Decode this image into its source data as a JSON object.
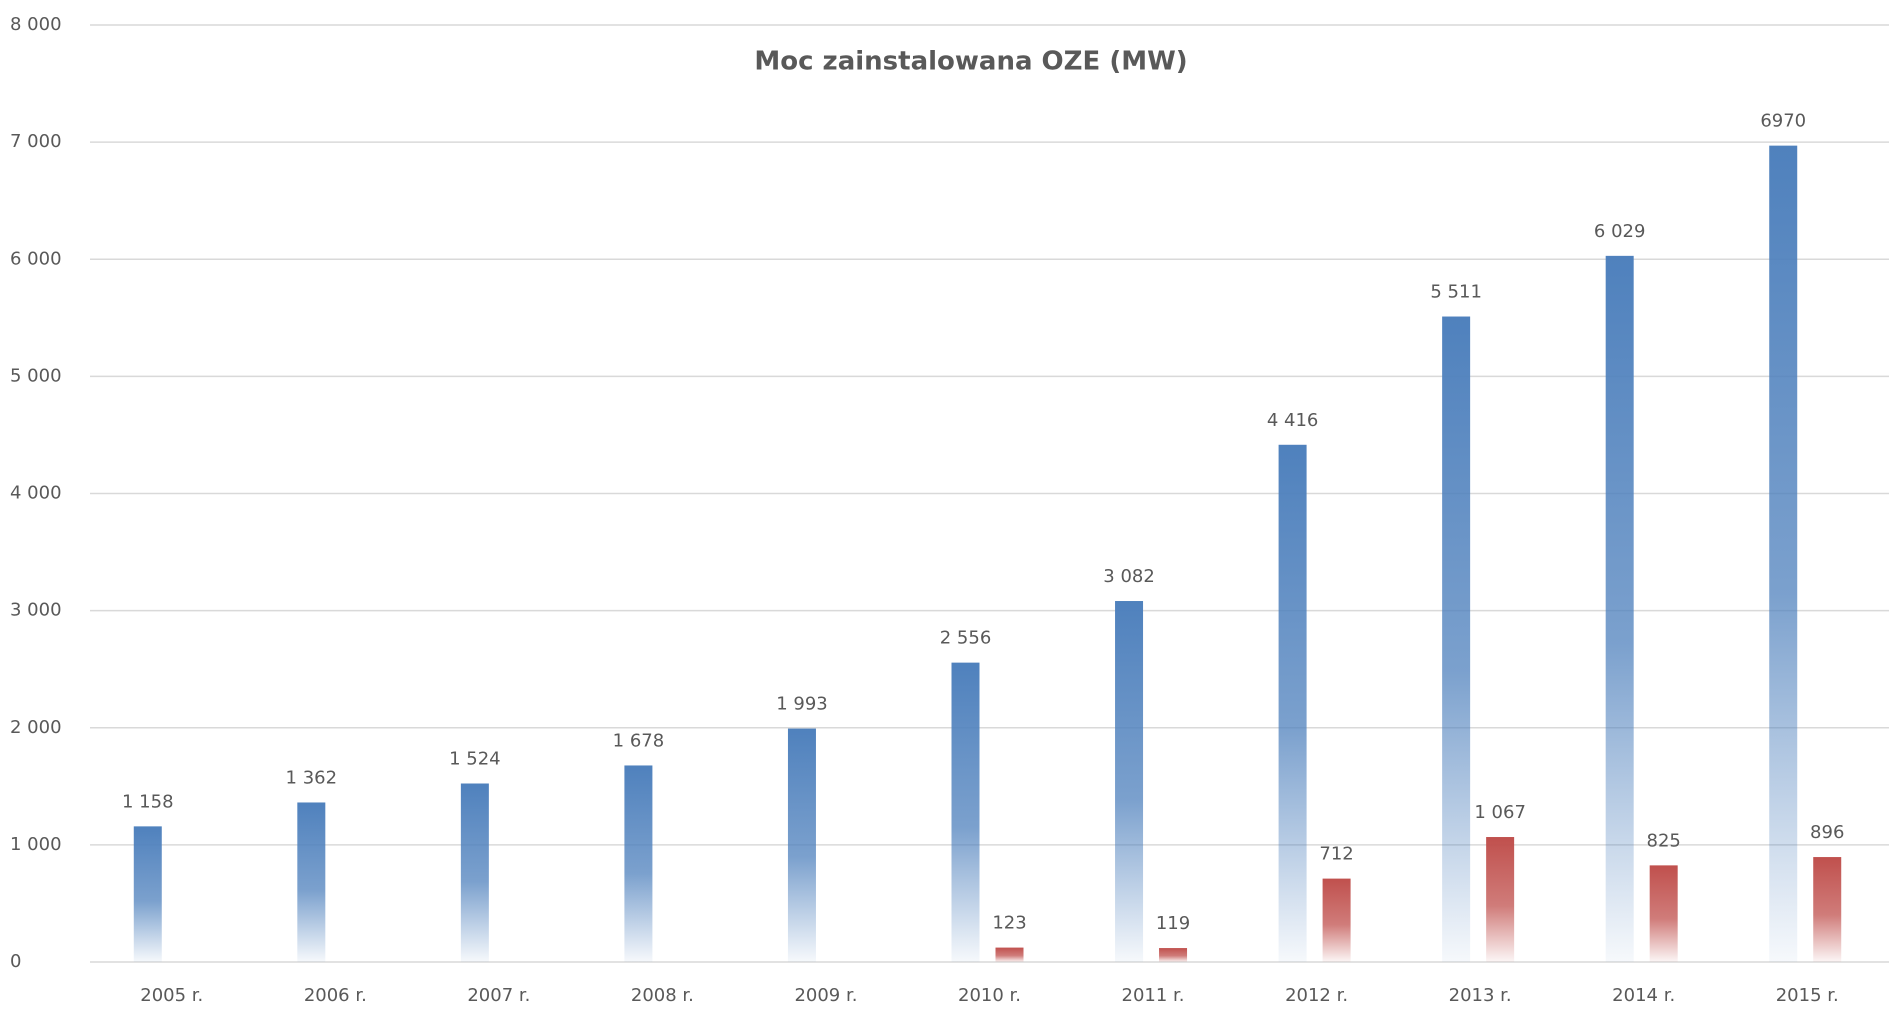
{
  "chart_data": {
    "type": "bar",
    "title": "Moc zainstalowana OZE (MW)",
    "categories": [
      "2005 r.",
      "2006 r.",
      "2007 r.",
      "2008 r.",
      "2009 r.",
      "2010 r.",
      "2011 r.",
      "2012 r.",
      "2013 r.",
      "2014 r.",
      "2015 r."
    ],
    "series": [
      {
        "color": "#4f81bd",
        "values": [
          1158,
          1362,
          1524,
          1678,
          1993,
          2556,
          3082,
          4416,
          5511,
          6029,
          6970
        ],
        "value_labels": [
          "1 158",
          "1 362",
          "1 524",
          "1 678",
          "1 993",
          "2 556",
          "3 082",
          "4 416",
          "5 511",
          "6 029",
          "6970"
        ]
      },
      {
        "color": "#c0504d",
        "values": [
          null,
          null,
          null,
          null,
          null,
          123,
          119,
          712,
          1067,
          825,
          896
        ],
        "value_labels": [
          null,
          null,
          null,
          null,
          null,
          "123",
          "119",
          "712",
          "1 067",
          "825",
          "896"
        ]
      }
    ],
    "ylim": [
      0,
      8000
    ],
    "yticks": [
      0,
      {
        "value": 1000,
        "label": "1 000"
      },
      {
        "value": 2000,
        "label": "2 000"
      },
      {
        "value": 3000,
        "label": "3 000"
      },
      {
        "value": 4000,
        "label": "4 000"
      },
      {
        "value": 5000,
        "label": "5 000"
      },
      {
        "value": 6000,
        "label": "6 000"
      },
      {
        "value": 7000,
        "label": "7 000"
      },
      {
        "value": 8000,
        "label": "8 000"
      }
    ],
    "grid": true
  }
}
